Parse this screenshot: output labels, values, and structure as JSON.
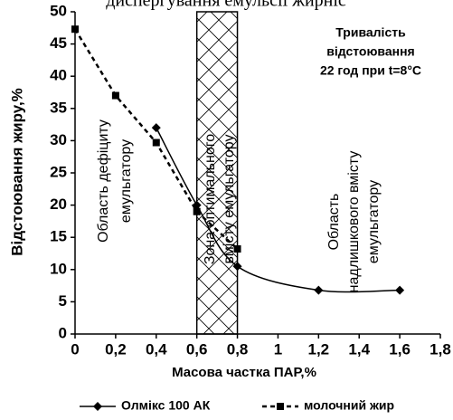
{
  "chart_data": {
    "type": "line",
    "title": "диспергування емульсії жирніс",
    "xlabel": "Масова частка ПАР,%",
    "ylabel": "Відстоювання жиру,%",
    "xlim": [
      0,
      1.8
    ],
    "ylim": [
      0,
      50
    ],
    "xticks": [
      0,
      {
        "value": 0.2,
        "label": "0,2"
      },
      {
        "value": 0.4,
        "label": "0,4"
      },
      {
        "value": 0.6,
        "label": "0,6"
      },
      {
        "value": 0.8,
        "label": "0,8"
      },
      1,
      {
        "value": 1.2,
        "label": "1,2"
      },
      {
        "value": 1.4,
        "label": "1,4"
      },
      {
        "value": 1.6,
        "label": "1,6"
      },
      {
        "value": 1.8,
        "label": "1,8"
      }
    ],
    "yticks": [
      0,
      5,
      10,
      15,
      20,
      25,
      30,
      35,
      40,
      45,
      50
    ],
    "zone": [
      0.6,
      0.8
    ],
    "series": [
      {
        "name": "Олмікс 100 АК",
        "color": "#000000",
        "marker": "diamond",
        "dash": false,
        "smooth": true,
        "x": [
          0.4,
          0.6,
          0.8,
          1.2,
          1.6
        ],
        "values": [
          32,
          20,
          10.5,
          6.8,
          6.8
        ]
      },
      {
        "name": "молочний жир",
        "color": "#000000",
        "marker": "square",
        "dash": true,
        "smooth": false,
        "x": [
          0,
          0.2,
          0.4,
          0.6,
          0.8
        ],
        "values": [
          47.3,
          37,
          29.7,
          19,
          13.2
        ]
      }
    ],
    "annotations": [
      {
        "lines": [
          "Область дефіциту",
          "емульгатору"
        ]
      },
      {
        "lines": [
          "Зона оптимального",
          "вмісту емульгатору"
        ]
      },
      {
        "lines": [
          "Область",
          "надлишкового вмісту",
          "емульгатору"
        ]
      }
    ],
    "note": [
      "Тривалість",
      "відстоювання",
      "22 год при t=8°C"
    ]
  }
}
